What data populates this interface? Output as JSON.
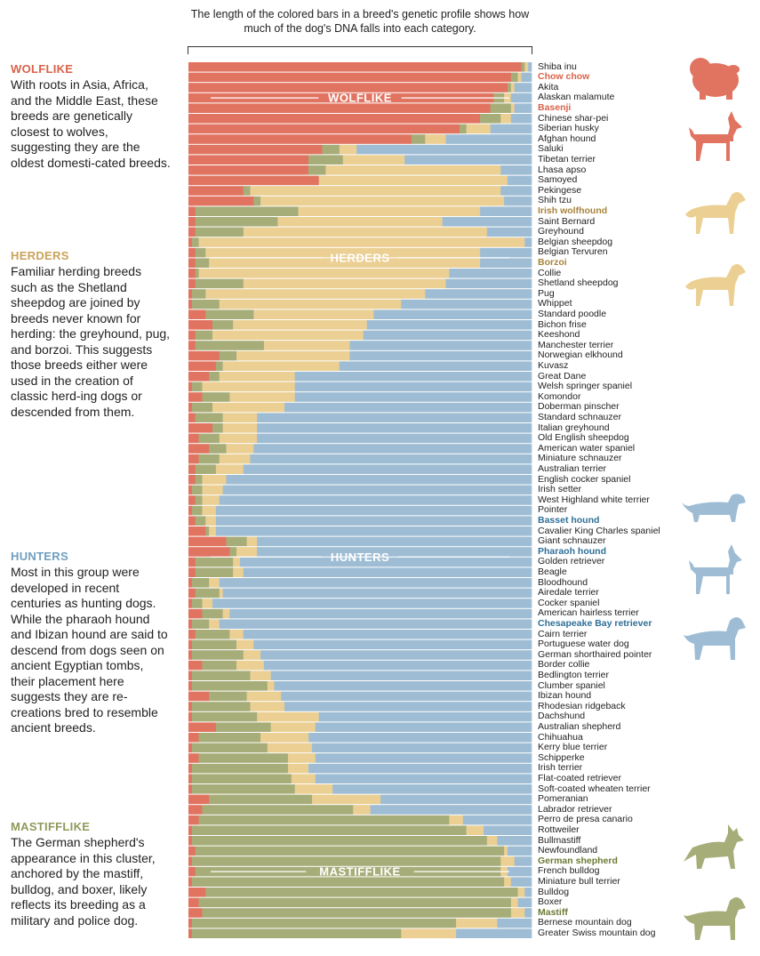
{
  "intro": "The length of the colored bars in a breed's genetic profile shows how much of the dog's DNA falls into each category.",
  "colors": {
    "wolflike": "#e07461",
    "mastifflike": "#a7ad79",
    "herders": "#ebcf93",
    "hunters": "#9ebdd4",
    "title_wolflike": "#d9624a",
    "title_herders": "#c9a35a",
    "title_hunters": "#6f9fbf",
    "title_mastifflike": "#8f9a5a",
    "text_herders": "#a8833a",
    "text_hunters": "#2e6f98",
    "text_mastifflike": "#6b7a35"
  },
  "sections": [
    {
      "key": "wolflike",
      "title": "WOLFLIKE",
      "body": "With roots in Asia, Africa, and the Middle East, these breeds are genetically closest to wolves, suggesting they are the oldest domesti-cated breeds."
    },
    {
      "key": "herders",
      "title": "HERDERS",
      "body": "Familiar herding breeds such as the Shetland sheepdog are joined by breeds never known for herding: the greyhound, pug, and borzoi. This suggests those breeds either were used in the creation of classic herd-ing dogs or descended from them."
    },
    {
      "key": "hunters",
      "title": "HUNTERS",
      "body": "Most in this group were developed in recent centuries as hunting dogs. While the pharaoh hound and Ibizan hound are said to descend from dogs seen on ancient Egyptian tombs, their placement here suggests they are re-creations bred to resemble ancient breeds."
    },
    {
      "key": "mastifflike",
      "title": "MASTIFFLIKE",
      "body": "The German shepherd's appearance in this cluster, anchored by the mastiff, bulldog, and boxer, likely reflects its breeding as a military and police dog."
    }
  ],
  "chart_data": {
    "type": "bar",
    "orientation": "horizontal-stacked-100",
    "series_names": [
      "Wolflike",
      "Mastifflike",
      "Herders",
      "Hunters"
    ],
    "group_labels": [
      {
        "text": "WOLFLIKE",
        "row": 3
      },
      {
        "text": "HERDERS",
        "row": 18.5
      },
      {
        "text": "HUNTERS",
        "row": 47.5
      },
      {
        "text": "MASTIFFLIKE",
        "row": 78
      }
    ],
    "highlight_icons": [
      "chow-chow-icon",
      "basenji-icon",
      "irish-wolfhound-icon",
      "borzoi-icon",
      "basset-hound-icon",
      "pharaoh-hound-icon",
      "chesapeake-bay-retriever-icon",
      "german-shepherd-icon",
      "mastiff-icon"
    ],
    "breeds": [
      {
        "name": "Shiba inu",
        "w": 97,
        "m": 1,
        "h": 1,
        "u": 1
      },
      {
        "name": "Chow chow",
        "w": 94,
        "m": 2,
        "h": 1,
        "u": 3,
        "hl": "wolflike"
      },
      {
        "name": "Akita",
        "w": 93,
        "m": 1,
        "h": 1,
        "u": 5
      },
      {
        "name": "Alaskan malamute",
        "w": 89,
        "m": 3,
        "h": 2,
        "u": 6
      },
      {
        "name": "Basenji",
        "w": 88,
        "m": 6,
        "h": 1,
        "u": 5,
        "hl": "wolflike"
      },
      {
        "name": "Chinese shar-pei",
        "w": 85,
        "m": 6,
        "h": 3,
        "u": 6
      },
      {
        "name": "Siberian husky",
        "w": 79,
        "m": 2,
        "h": 7,
        "u": 12
      },
      {
        "name": "Afghan hound",
        "w": 65,
        "m": 4,
        "h": 6,
        "u": 25
      },
      {
        "name": "Saluki",
        "w": 39,
        "m": 5,
        "h": 5,
        "u": 51
      },
      {
        "name": "Tibetan terrier",
        "w": 35,
        "m": 10,
        "h": 18,
        "u": 37
      },
      {
        "name": "Lhasa apso",
        "w": 35,
        "m": 5,
        "h": 51,
        "u": 9
      },
      {
        "name": "Samoyed",
        "w": 38,
        "m": 0,
        "h": 55,
        "u": 7
      },
      {
        "name": "Pekingese",
        "w": 16,
        "m": 2,
        "h": 73,
        "u": 9
      },
      {
        "name": "Shih tzu",
        "w": 19,
        "m": 2,
        "h": 71,
        "u": 8
      },
      {
        "name": "Irish wolfhound",
        "w": 2,
        "m": 30,
        "h": 53,
        "u": 15,
        "hl": "herders"
      },
      {
        "name": "Saint Bernard",
        "w": 2,
        "m": 24,
        "h": 48,
        "u": 26
      },
      {
        "name": "Greyhound",
        "w": 2,
        "m": 14,
        "h": 71,
        "u": 13
      },
      {
        "name": "Belgian sheepdog",
        "w": 1,
        "m": 2,
        "h": 95,
        "u": 2
      },
      {
        "name": "Belgian Tervuren",
        "w": 2,
        "m": 3,
        "h": 80,
        "u": 15
      },
      {
        "name": "Borzoi",
        "w": 2,
        "m": 4,
        "h": 79,
        "u": 15,
        "hl": "herders"
      },
      {
        "name": "Collie",
        "w": 2,
        "m": 1,
        "h": 73,
        "u": 24
      },
      {
        "name": "Shetland sheepdog",
        "w": 2,
        "m": 14,
        "h": 59,
        "u": 25
      },
      {
        "name": "Pug",
        "w": 1,
        "m": 4,
        "h": 64,
        "u": 31
      },
      {
        "name": "Whippet",
        "w": 1,
        "m": 8,
        "h": 53,
        "u": 38
      },
      {
        "name": "Standard poodle",
        "w": 5,
        "m": 14,
        "h": 35,
        "u": 46
      },
      {
        "name": "Bichon frise",
        "w": 7,
        "m": 6,
        "h": 39,
        "u": 48
      },
      {
        "name": "Keeshond",
        "w": 2,
        "m": 5,
        "h": 44,
        "u": 49
      },
      {
        "name": "Manchester terrier",
        "w": 2,
        "m": 20,
        "h": 25,
        "u": 53
      },
      {
        "name": "Norwegian elkhound",
        "w": 9,
        "m": 5,
        "h": 33,
        "u": 53
      },
      {
        "name": "Kuvasz",
        "w": 8,
        "m": 2,
        "h": 34,
        "u": 56
      },
      {
        "name": "Great Dane",
        "w": 6,
        "m": 3,
        "h": 22,
        "u": 69
      },
      {
        "name": "Welsh springer spaniel",
        "w": 1,
        "m": 3,
        "h": 27,
        "u": 69
      },
      {
        "name": "Komondor",
        "w": 4,
        "m": 8,
        "h": 19,
        "u": 69
      },
      {
        "name": "Doberman pinscher",
        "w": 1,
        "m": 6,
        "h": 21,
        "u": 72
      },
      {
        "name": "Standard schnauzer",
        "w": 2,
        "m": 8,
        "h": 10,
        "u": 80
      },
      {
        "name": "Italian greyhound",
        "w": 7,
        "m": 3,
        "h": 10,
        "u": 80
      },
      {
        "name": "Old English sheepdog",
        "w": 3,
        "m": 6,
        "h": 11,
        "u": 80
      },
      {
        "name": "American water spaniel",
        "w": 6,
        "m": 5,
        "h": 8,
        "u": 81
      },
      {
        "name": "Miniature schnauzer",
        "w": 3,
        "m": 6,
        "h": 9,
        "u": 82
      },
      {
        "name": "Australian terrier",
        "w": 2,
        "m": 6,
        "h": 8,
        "u": 84
      },
      {
        "name": "English cocker spaniel",
        "w": 2,
        "m": 2,
        "h": 7,
        "u": 89
      },
      {
        "name": "Irish setter",
        "w": 1,
        "m": 3,
        "h": 6,
        "u": 90
      },
      {
        "name": "West Highland white terrier",
        "w": 2,
        "m": 2,
        "h": 5,
        "u": 91
      },
      {
        "name": "Pointer",
        "w": 1,
        "m": 3,
        "h": 4,
        "u": 92
      },
      {
        "name": "Basset hound",
        "w": 2,
        "m": 3,
        "h": 3,
        "u": 92,
        "hl": "hunters"
      },
      {
        "name": "Cavalier King Charles spaniel",
        "w": 5,
        "m": 1,
        "h": 2,
        "u": 92
      },
      {
        "name": "Giant schnauzer",
        "w": 11,
        "m": 6,
        "h": 3,
        "u": 80
      },
      {
        "name": "Pharaoh hound",
        "w": 12,
        "m": 2,
        "h": 6,
        "u": 80,
        "hl": "hunters"
      },
      {
        "name": "Golden retriever",
        "w": 2,
        "m": 11,
        "h": 2,
        "u": 85
      },
      {
        "name": "Beagle",
        "w": 2,
        "m": 11,
        "h": 3,
        "u": 84
      },
      {
        "name": "Bloodhound",
        "w": 1,
        "m": 5,
        "h": 3,
        "u": 91
      },
      {
        "name": "Airedale terrier",
        "w": 2,
        "m": 7,
        "h": 1,
        "u": 90
      },
      {
        "name": "Cocker spaniel",
        "w": 1,
        "m": 3,
        "h": 3,
        "u": 93
      },
      {
        "name": "American hairless terrier",
        "w": 4,
        "m": 6,
        "h": 2,
        "u": 88
      },
      {
        "name": "Chesapeake Bay retriever",
        "w": 1,
        "m": 5,
        "h": 3,
        "u": 91,
        "hl": "hunters"
      },
      {
        "name": "Cairn terrier",
        "w": 2,
        "m": 10,
        "h": 4,
        "u": 84
      },
      {
        "name": "Portuguese water dog",
        "w": 1,
        "m": 13,
        "h": 5,
        "u": 81
      },
      {
        "name": "German shorthaired pointer",
        "w": 1,
        "m": 15,
        "h": 5,
        "u": 79
      },
      {
        "name": "Border collie",
        "w": 4,
        "m": 10,
        "h": 8,
        "u": 78
      },
      {
        "name": "Bedlington terrier",
        "w": 1,
        "m": 17,
        "h": 6,
        "u": 76
      },
      {
        "name": "Clumber spaniel",
        "w": 1,
        "m": 22,
        "h": 2,
        "u": 75
      },
      {
        "name": "Ibizan hound",
        "w": 6,
        "m": 11,
        "h": 10,
        "u": 73
      },
      {
        "name": "Rhodesian ridgeback",
        "w": 1,
        "m": 17,
        "h": 10,
        "u": 72
      },
      {
        "name": "Dachshund",
        "w": 1,
        "m": 19,
        "h": 18,
        "u": 62
      },
      {
        "name": "Australian shepherd",
        "w": 8,
        "m": 16,
        "h": 13,
        "u": 63
      },
      {
        "name": "Chihuahua",
        "w": 3,
        "m": 18,
        "h": 14,
        "u": 65
      },
      {
        "name": "Kerry blue terrier",
        "w": 1,
        "m": 22,
        "h": 13,
        "u": 64
      },
      {
        "name": "Schipperke",
        "w": 3,
        "m": 26,
        "h": 8,
        "u": 63
      },
      {
        "name": "Irish terrier",
        "w": 1,
        "m": 28,
        "h": 6,
        "u": 65
      },
      {
        "name": "Flat-coated retriever",
        "w": 1,
        "m": 29,
        "h": 7,
        "u": 63
      },
      {
        "name": "Soft-coated wheaten terrier",
        "w": 1,
        "m": 30,
        "h": 11,
        "u": 58
      },
      {
        "name": "Pomeranian",
        "w": 6,
        "m": 30,
        "h": 20,
        "u": 44
      },
      {
        "name": "Labrador retriever",
        "w": 4,
        "m": 44,
        "h": 5,
        "u": 47
      },
      {
        "name": "Perro de presa canario",
        "w": 3,
        "m": 73,
        "h": 4,
        "u": 20
      },
      {
        "name": "Rottweiler",
        "w": 1,
        "m": 80,
        "h": 5,
        "u": 14
      },
      {
        "name": "Bullmastiff",
        "w": 1,
        "m": 86,
        "h": 3,
        "u": 10
      },
      {
        "name": "Newfoundland",
        "w": 2,
        "m": 90,
        "h": 1,
        "u": 7
      },
      {
        "name": "German shepherd",
        "w": 1,
        "m": 90,
        "h": 4,
        "u": 5,
        "hl": "mastifflike"
      },
      {
        "name": "French bulldog",
        "w": 2,
        "m": 89,
        "h": 2,
        "u": 7
      },
      {
        "name": "Miniature bull terrier",
        "w": 1,
        "m": 91,
        "h": 2,
        "u": 6
      },
      {
        "name": "Bulldog",
        "w": 5,
        "m": 91,
        "h": 2,
        "u": 2
      },
      {
        "name": "Boxer",
        "w": 3,
        "m": 91,
        "h": 2,
        "u": 4
      },
      {
        "name": "Mastiff",
        "w": 4,
        "m": 90,
        "h": 4,
        "u": 2,
        "hl": "mastifflike"
      },
      {
        "name": "Bernese mountain dog",
        "w": 1,
        "m": 77,
        "h": 12,
        "u": 10
      },
      {
        "name": "Greater Swiss mountain dog",
        "w": 1,
        "m": 61,
        "h": 16,
        "u": 22
      }
    ]
  }
}
